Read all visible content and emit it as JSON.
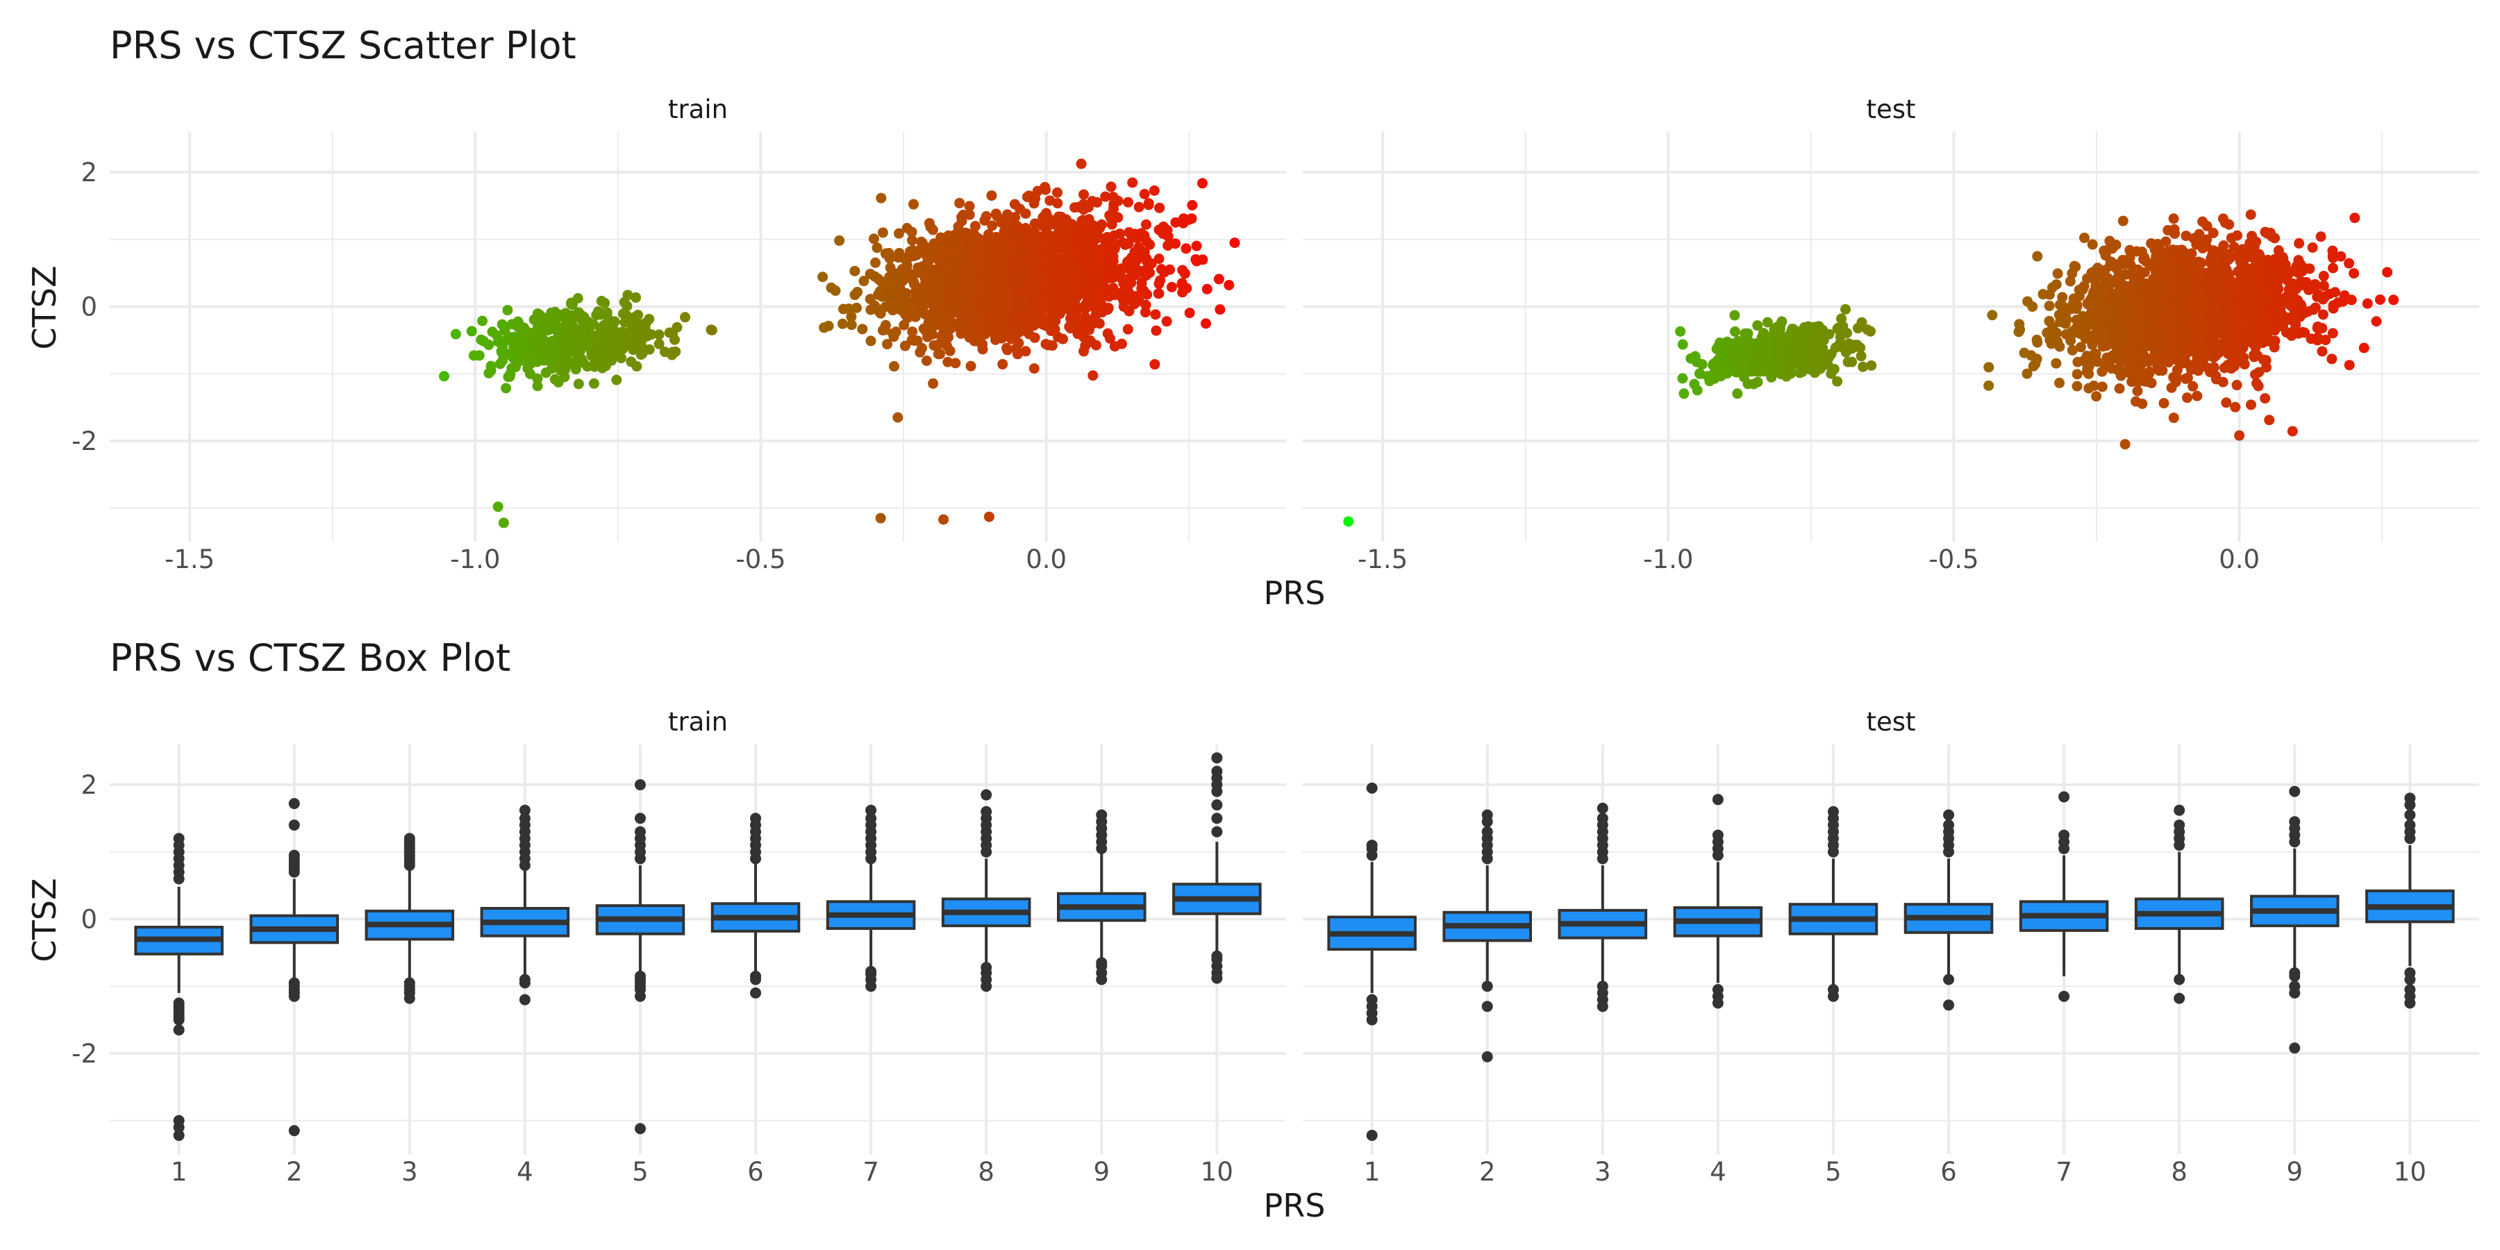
{
  "chart_data": [
    {
      "type": "scatter",
      "title": "PRS vs CTSZ Scatter Plot",
      "xlabel": "PRS",
      "ylabel": "CTSZ",
      "facets": [
        "train",
        "test"
      ],
      "xlim": [
        -1.64,
        0.42
      ],
      "ylim": [
        -3.5,
        2.6
      ],
      "x_ticks": [
        -1.5,
        -1.0,
        -0.5,
        0.0
      ],
      "x_tick_labels": [
        "-1.5",
        "-1.0",
        "-0.5",
        "0.0"
      ],
      "y_ticks": [
        -2,
        0,
        2
      ],
      "y_tick_labels": [
        "-2",
        "0",
        "2"
      ],
      "grid": true,
      "legend": "none",
      "color_scale": {
        "by": "PRS",
        "low": "#00ff00",
        "high": "#ff0000"
      },
      "clusters": {
        "train": [
          {
            "description": "main cluster",
            "x_range": [
              -0.45,
              0.34
            ],
            "y_range": [
              -1.6,
              2.4
            ],
            "trend": "positive"
          },
          {
            "description": "secondary cluster",
            "x_range": [
              -1.08,
              -0.58
            ],
            "y_range": [
              -1.6,
              0.55
            ],
            "trend": "positive"
          }
        ],
        "test": [
          {
            "description": "main cluster",
            "x_range": [
              -0.45,
              0.27
            ],
            "y_range": [
              -2.05,
              1.95
            ],
            "trend": "positive"
          },
          {
            "description": "secondary cluster",
            "x_range": [
              -1.02,
              -0.6
            ],
            "y_range": [
              -1.5,
              0.1
            ],
            "trend": "positive"
          }
        ]
      },
      "outliers": {
        "train": [
          [
            -0.96,
            -2.98
          ],
          [
            -0.95,
            -3.22
          ],
          [
            -0.29,
            -3.15
          ],
          [
            -0.18,
            -3.17
          ],
          [
            -0.1,
            -3.13
          ],
          [
            0.19,
            -0.86
          ],
          [
            0.32,
            0.32
          ],
          [
            0.33,
            0.95
          ],
          [
            -0.26,
            -1.65
          ]
        ],
        "test": [
          [
            -1.56,
            -3.2
          ],
          [
            -0.2,
            -2.05
          ],
          [
            0.0,
            -1.92
          ],
          [
            0.24,
            -0.22
          ],
          [
            0.27,
            0.1
          ]
        ]
      }
    },
    {
      "type": "box",
      "title": "PRS vs CTSZ Box Plot",
      "xlabel": "PRS",
      "ylabel": "CTSZ",
      "facets": [
        "train",
        "test"
      ],
      "categories": [
        "1",
        "2",
        "3",
        "4",
        "5",
        "6",
        "7",
        "8",
        "9",
        "10"
      ],
      "ylim": [
        -3.5,
        2.6
      ],
      "y_ticks": [
        -2,
        0,
        2
      ],
      "y_tick_labels": [
        "-2",
        "0",
        "2"
      ],
      "grid": true,
      "fill_color": "#1f8ff6",
      "outline_color": "#333333",
      "series": [
        {
          "facet": "train",
          "boxes": [
            {
              "q1": -0.52,
              "median": -0.3,
              "q3": -0.12,
              "whisker_low": -1.1,
              "whisker_high": 0.48,
              "outliers": [
                -1.25,
                -1.3,
                -1.35,
                -1.4,
                -1.45,
                -1.5,
                -1.65,
                -3.0,
                -3.1,
                -3.22,
                0.6,
                0.7,
                0.8,
                0.9,
                1.0,
                1.1,
                1.2
              ]
            },
            {
              "q1": -0.35,
              "median": -0.15,
              "q3": 0.05,
              "whisker_low": -0.9,
              "whisker_high": 0.6,
              "outliers": [
                -0.95,
                -1.0,
                -1.05,
                -1.1,
                -1.15,
                -3.15,
                0.7,
                0.75,
                0.8,
                0.85,
                0.9,
                0.95,
                1.4,
                1.72
              ]
            },
            {
              "q1": -0.3,
              "median": -0.08,
              "q3": 0.12,
              "whisker_low": -0.9,
              "whisker_high": 0.72,
              "outliers": [
                -0.95,
                -1.0,
                -1.05,
                -1.1,
                -1.18,
                0.8,
                0.85,
                0.9,
                0.95,
                1.0,
                1.05,
                1.1,
                1.15,
                1.2
              ]
            },
            {
              "q1": -0.25,
              "median": -0.05,
              "q3": 0.16,
              "whisker_low": -0.85,
              "whisker_high": 0.75,
              "outliers": [
                -0.9,
                -0.95,
                -1.2,
                0.8,
                0.9,
                1.0,
                1.1,
                1.2,
                1.3,
                1.4,
                1.5,
                1.62
              ]
            },
            {
              "q1": -0.22,
              "median": 0.0,
              "q3": 0.2,
              "whisker_low": -0.8,
              "whisker_high": 0.8,
              "outliers": [
                -0.85,
                -0.9,
                -0.95,
                -1.0,
                -1.05,
                -1.15,
                -3.12,
                0.9,
                1.0,
                1.1,
                1.2,
                1.3,
                1.5,
                2.0
              ]
            },
            {
              "q1": -0.18,
              "median": 0.02,
              "q3": 0.23,
              "whisker_low": -0.78,
              "whisker_high": 0.82,
              "outliers": [
                -0.85,
                -0.9,
                -1.1,
                0.9,
                1.0,
                1.1,
                1.2,
                1.3,
                1.4,
                1.5
              ]
            },
            {
              "q1": -0.14,
              "median": 0.06,
              "q3": 0.26,
              "whisker_low": -0.72,
              "whisker_high": 0.85,
              "outliers": [
                -0.78,
                -0.82,
                -0.9,
                -1.0,
                0.9,
                1.0,
                1.1,
                1.2,
                1.3,
                1.4,
                1.5,
                1.62
              ]
            },
            {
              "q1": -0.1,
              "median": 0.1,
              "q3": 0.3,
              "whisker_low": -0.68,
              "whisker_high": 0.9,
              "outliers": [
                -0.72,
                -0.8,
                -0.9,
                -1.0,
                1.0,
                1.1,
                1.2,
                1.3,
                1.4,
                1.5,
                1.6,
                1.85
              ]
            },
            {
              "q1": -0.02,
              "median": 0.18,
              "q3": 0.38,
              "whisker_low": -0.6,
              "whisker_high": 0.98,
              "outliers": [
                -0.65,
                -0.7,
                -0.8,
                -0.9,
                1.05,
                1.15,
                1.25,
                1.35,
                1.45,
                1.55
              ]
            },
            {
              "q1": 0.08,
              "median": 0.3,
              "q3": 0.52,
              "whisker_low": -0.5,
              "whisker_high": 1.15,
              "outliers": [
                -0.55,
                -0.6,
                -0.7,
                -0.8,
                -0.88,
                1.3,
                1.5,
                1.7,
                1.9,
                2.0,
                2.1,
                2.2,
                2.4
              ]
            }
          ]
        },
        {
          "facet": "test",
          "boxes": [
            {
              "q1": -0.45,
              "median": -0.22,
              "q3": 0.03,
              "whisker_low": -1.1,
              "whisker_high": 0.85,
              "outliers": [
                -1.2,
                -1.3,
                -1.4,
                -1.5,
                -3.22,
                0.95,
                1.05,
                1.1,
                1.95
              ]
            },
            {
              "q1": -0.32,
              "median": -0.1,
              "q3": 0.1,
              "whisker_low": -0.95,
              "whisker_high": 0.8,
              "outliers": [
                -1.0,
                -1.3,
                -2.05,
                0.9,
                1.0,
                1.1,
                1.2,
                1.3,
                1.45,
                1.55
              ]
            },
            {
              "q1": -0.28,
              "median": -0.07,
              "q3": 0.13,
              "whisker_low": -0.95,
              "whisker_high": 0.8,
              "outliers": [
                -1.0,
                -1.1,
                -1.2,
                -1.3,
                0.9,
                1.0,
                1.1,
                1.2,
                1.3,
                1.4,
                1.5,
                1.65
              ]
            },
            {
              "q1": -0.25,
              "median": -0.03,
              "q3": 0.17,
              "whisker_low": -0.95,
              "whisker_high": 0.85,
              "outliers": [
                -1.05,
                -1.15,
                -1.25,
                0.95,
                1.05,
                1.15,
                1.25,
                1.78
              ]
            },
            {
              "q1": -0.22,
              "median": 0.0,
              "q3": 0.22,
              "whisker_low": -0.98,
              "whisker_high": 0.9,
              "outliers": [
                -1.05,
                -1.15,
                1.0,
                1.1,
                1.2,
                1.3,
                1.4,
                1.5,
                1.6
              ]
            },
            {
              "q1": -0.2,
              "median": 0.02,
              "q3": 0.22,
              "whisker_low": -0.85,
              "whisker_high": 0.9,
              "outliers": [
                -0.9,
                -1.28,
                1.0,
                1.1,
                1.2,
                1.3,
                1.4,
                1.55
              ]
            },
            {
              "q1": -0.17,
              "median": 0.05,
              "q3": 0.26,
              "whisker_low": -0.85,
              "whisker_high": 0.95,
              "outliers": [
                -1.15,
                1.05,
                1.15,
                1.25,
                1.82
              ]
            },
            {
              "q1": -0.14,
              "median": 0.08,
              "q3": 0.3,
              "whisker_low": -0.85,
              "whisker_high": 1.0,
              "outliers": [
                -0.9,
                -1.18,
                1.1,
                1.2,
                1.3,
                1.4,
                1.62
              ]
            },
            {
              "q1": -0.1,
              "median": 0.12,
              "q3": 0.34,
              "whisker_low": -0.75,
              "whisker_high": 1.05,
              "outliers": [
                -0.8,
                -0.85,
                -1.0,
                -1.1,
                -1.92,
                1.15,
                1.25,
                1.35,
                1.45,
                1.9
              ]
            },
            {
              "q1": -0.04,
              "median": 0.18,
              "q3": 0.42,
              "whisker_low": -0.7,
              "whisker_high": 1.1,
              "outliers": [
                -0.8,
                -0.9,
                -1.05,
                -1.15,
                -1.25,
                1.2,
                1.3,
                1.4,
                1.55,
                1.7,
                1.8
              ]
            }
          ]
        }
      ]
    }
  ]
}
